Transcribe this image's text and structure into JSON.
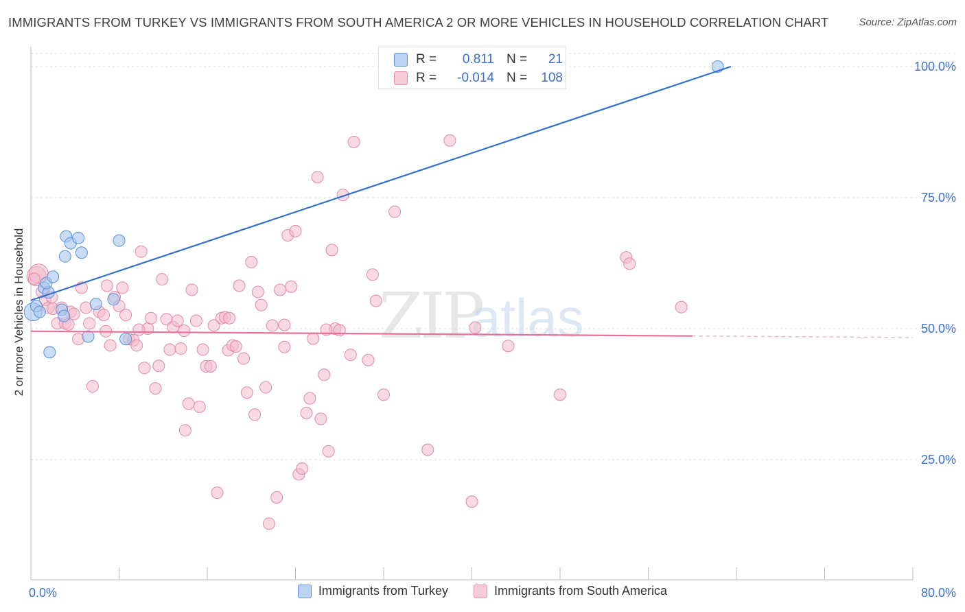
{
  "title": "IMMIGRANTS FROM TURKEY VS IMMIGRANTS FROM SOUTH AMERICA 2 OR MORE VEHICLES IN HOUSEHOLD CORRELATION CHART",
  "source": "Source: ZipAtlas.com",
  "watermark": {
    "zip": "ZIP",
    "atlas": "atlas"
  },
  "colors": {
    "blue_fill": "#a9c6ee",
    "blue_stroke": "#5b8fd6",
    "blue_line": "#2f6fd0",
    "pink_fill": "#f4b9cb",
    "pink_stroke": "#e08aa6",
    "pink_line": "#e8709a",
    "accent_text": "#3a6fd0",
    "grid": "#dcdcdc"
  },
  "stats_box": {
    "series1": {
      "r_label": "R =",
      "r_value": "0.811",
      "n_label": "N =",
      "n_value": "21"
    },
    "series2": {
      "r_label": "R =",
      "r_value": "-0.014",
      "n_label": "N =",
      "n_value": "108"
    }
  },
  "legend": {
    "series1": "Immigrants from Turkey",
    "series2": "Immigrants from South America"
  },
  "chart_data": {
    "type": "scatter",
    "title": "IMMIGRANTS FROM TURKEY VS IMMIGRANTS FROM SOUTH AMERICA 2 OR MORE VEHICLES IN HOUSEHOLD CORRELATION CHART",
    "xlabel": "",
    "ylabel": "2 or more Vehicles in Household",
    "xlim": [
      0,
      80
    ],
    "ylim": [
      4,
      102
    ],
    "x_tick_labels": [
      "0.0%",
      "80.0%"
    ],
    "y_ticks": [
      25,
      50,
      75,
      100
    ],
    "y_tick_labels": [
      "25.0%",
      "50.0%",
      "75.0%",
      "100.0%"
    ],
    "legend_position": "bottom",
    "grid": true,
    "series": [
      {
        "name": "Immigrants from Turkey",
        "color": "#a9c6ee",
        "points": [
          [
            0.2,
            53.2
          ],
          [
            0.5,
            54.3
          ],
          [
            1.2,
            57.8
          ],
          [
            1.6,
            56.9
          ],
          [
            1.4,
            58.7
          ],
          [
            2.0,
            59.9
          ],
          [
            1.7,
            45.5
          ],
          [
            3.2,
            67.6
          ],
          [
            3.1,
            63.8
          ],
          [
            3.6,
            66.3
          ],
          [
            4.3,
            67.3
          ],
          [
            4.6,
            64.5
          ],
          [
            2.8,
            53.6
          ],
          [
            3.0,
            52.4
          ],
          [
            5.2,
            48.5
          ],
          [
            5.9,
            54.7
          ],
          [
            7.5,
            55.6
          ],
          [
            8.6,
            48.0
          ],
          [
            8.0,
            66.8
          ],
          [
            0.8,
            53.2
          ],
          [
            62.3,
            100.0
          ]
        ],
        "trend": {
          "x": [
            0.0,
            63.5
          ],
          "y": [
            55.4,
            100.0
          ]
        }
      },
      {
        "name": "Immigrants from South America",
        "color": "#f4b9cb",
        "points": [
          [
            0.5,
            60.0
          ],
          [
            0.7,
            60.5
          ],
          [
            1.0,
            57.0
          ],
          [
            1.3,
            55.5
          ],
          [
            1.6,
            54.0
          ],
          [
            2.0,
            53.8
          ],
          [
            2.4,
            51.0
          ],
          [
            2.8,
            54.0
          ],
          [
            3.1,
            51.0
          ],
          [
            3.6,
            53.2
          ],
          [
            3.9,
            52.8
          ],
          [
            4.3,
            48.0
          ],
          [
            4.6,
            57.8
          ],
          [
            5.0,
            54.0
          ],
          [
            5.3,
            51.0
          ],
          [
            5.6,
            39.0
          ],
          [
            6.2,
            53.2
          ],
          [
            6.6,
            52.6
          ],
          [
            6.9,
            58.2
          ],
          [
            7.2,
            46.8
          ],
          [
            7.6,
            56.0
          ],
          [
            8.0,
            54.3
          ],
          [
            8.3,
            57.8
          ],
          [
            8.6,
            52.6
          ],
          [
            8.9,
            48.0
          ],
          [
            9.3,
            47.8
          ],
          [
            9.6,
            46.8
          ],
          [
            10.0,
            64.7
          ],
          [
            10.3,
            42.5
          ],
          [
            10.6,
            50.0
          ],
          [
            10.9,
            52.0
          ],
          [
            11.3,
            38.6
          ],
          [
            11.6,
            42.9
          ],
          [
            11.9,
            59.4
          ],
          [
            12.3,
            51.8
          ],
          [
            12.6,
            46.0
          ],
          [
            12.9,
            50.3
          ],
          [
            13.3,
            51.5
          ],
          [
            13.6,
            46.2
          ],
          [
            13.9,
            49.6
          ],
          [
            14.3,
            35.7
          ],
          [
            14.6,
            57.4
          ],
          [
            15.0,
            51.5
          ],
          [
            15.3,
            35.1
          ],
          [
            15.6,
            46.0
          ],
          [
            15.9,
            42.8
          ],
          [
            16.3,
            42.8
          ],
          [
            16.6,
            50.6
          ],
          [
            16.9,
            18.7
          ],
          [
            17.3,
            52.0
          ],
          [
            17.6,
            52.2
          ],
          [
            17.9,
            45.9
          ],
          [
            18.3,
            46.8
          ],
          [
            18.6,
            46.6
          ],
          [
            18.9,
            58.2
          ],
          [
            19.3,
            44.3
          ],
          [
            19.6,
            37.8
          ],
          [
            20.0,
            62.7
          ],
          [
            20.3,
            33.6
          ],
          [
            20.6,
            57.0
          ],
          [
            20.9,
            54.5
          ],
          [
            21.3,
            38.8
          ],
          [
            21.6,
            12.8
          ],
          [
            21.9,
            50.6
          ],
          [
            22.3,
            17.8
          ],
          [
            22.6,
            57.4
          ],
          [
            23.0,
            46.5
          ],
          [
            23.3,
            67.8
          ],
          [
            23.6,
            58.0
          ],
          [
            24.0,
            68.6
          ],
          [
            24.3,
            22.2
          ],
          [
            24.6,
            23.3
          ],
          [
            25.0,
            33.9
          ],
          [
            25.3,
            36.7
          ],
          [
            25.6,
            48.1
          ],
          [
            26.0,
            78.9
          ],
          [
            26.3,
            32.8
          ],
          [
            26.6,
            41.2
          ],
          [
            27.0,
            26.6
          ],
          [
            27.3,
            65.0
          ],
          [
            27.6,
            50.0
          ],
          [
            28.0,
            49.7
          ],
          [
            28.3,
            75.5
          ],
          [
            29.0,
            45.0
          ],
          [
            29.3,
            85.6
          ],
          [
            30.6,
            44.0
          ],
          [
            31.0,
            60.3
          ],
          [
            31.3,
            55.3
          ],
          [
            32.0,
            37.4
          ],
          [
            33.0,
            72.3
          ],
          [
            36.0,
            26.9
          ],
          [
            38.0,
            85.9
          ],
          [
            40.0,
            17.0
          ],
          [
            40.3,
            50.2
          ],
          [
            43.3,
            46.7
          ],
          [
            48.0,
            37.4
          ],
          [
            54.0,
            63.6
          ],
          [
            54.3,
            62.4
          ],
          [
            59.0,
            54.1
          ],
          [
            0.3,
            59.5
          ],
          [
            1.9,
            56.0
          ],
          [
            6.8,
            49.5
          ],
          [
            9.8,
            49.8
          ],
          [
            14.0,
            30.6
          ],
          [
            18.0,
            52.0
          ],
          [
            23.0,
            50.7
          ],
          [
            26.8,
            49.8
          ],
          [
            3.4,
            50.8
          ]
        ],
        "trend": {
          "x": [
            0.0,
            60.0
          ],
          "y": [
            49.5,
            48.6
          ]
        }
      }
    ]
  }
}
